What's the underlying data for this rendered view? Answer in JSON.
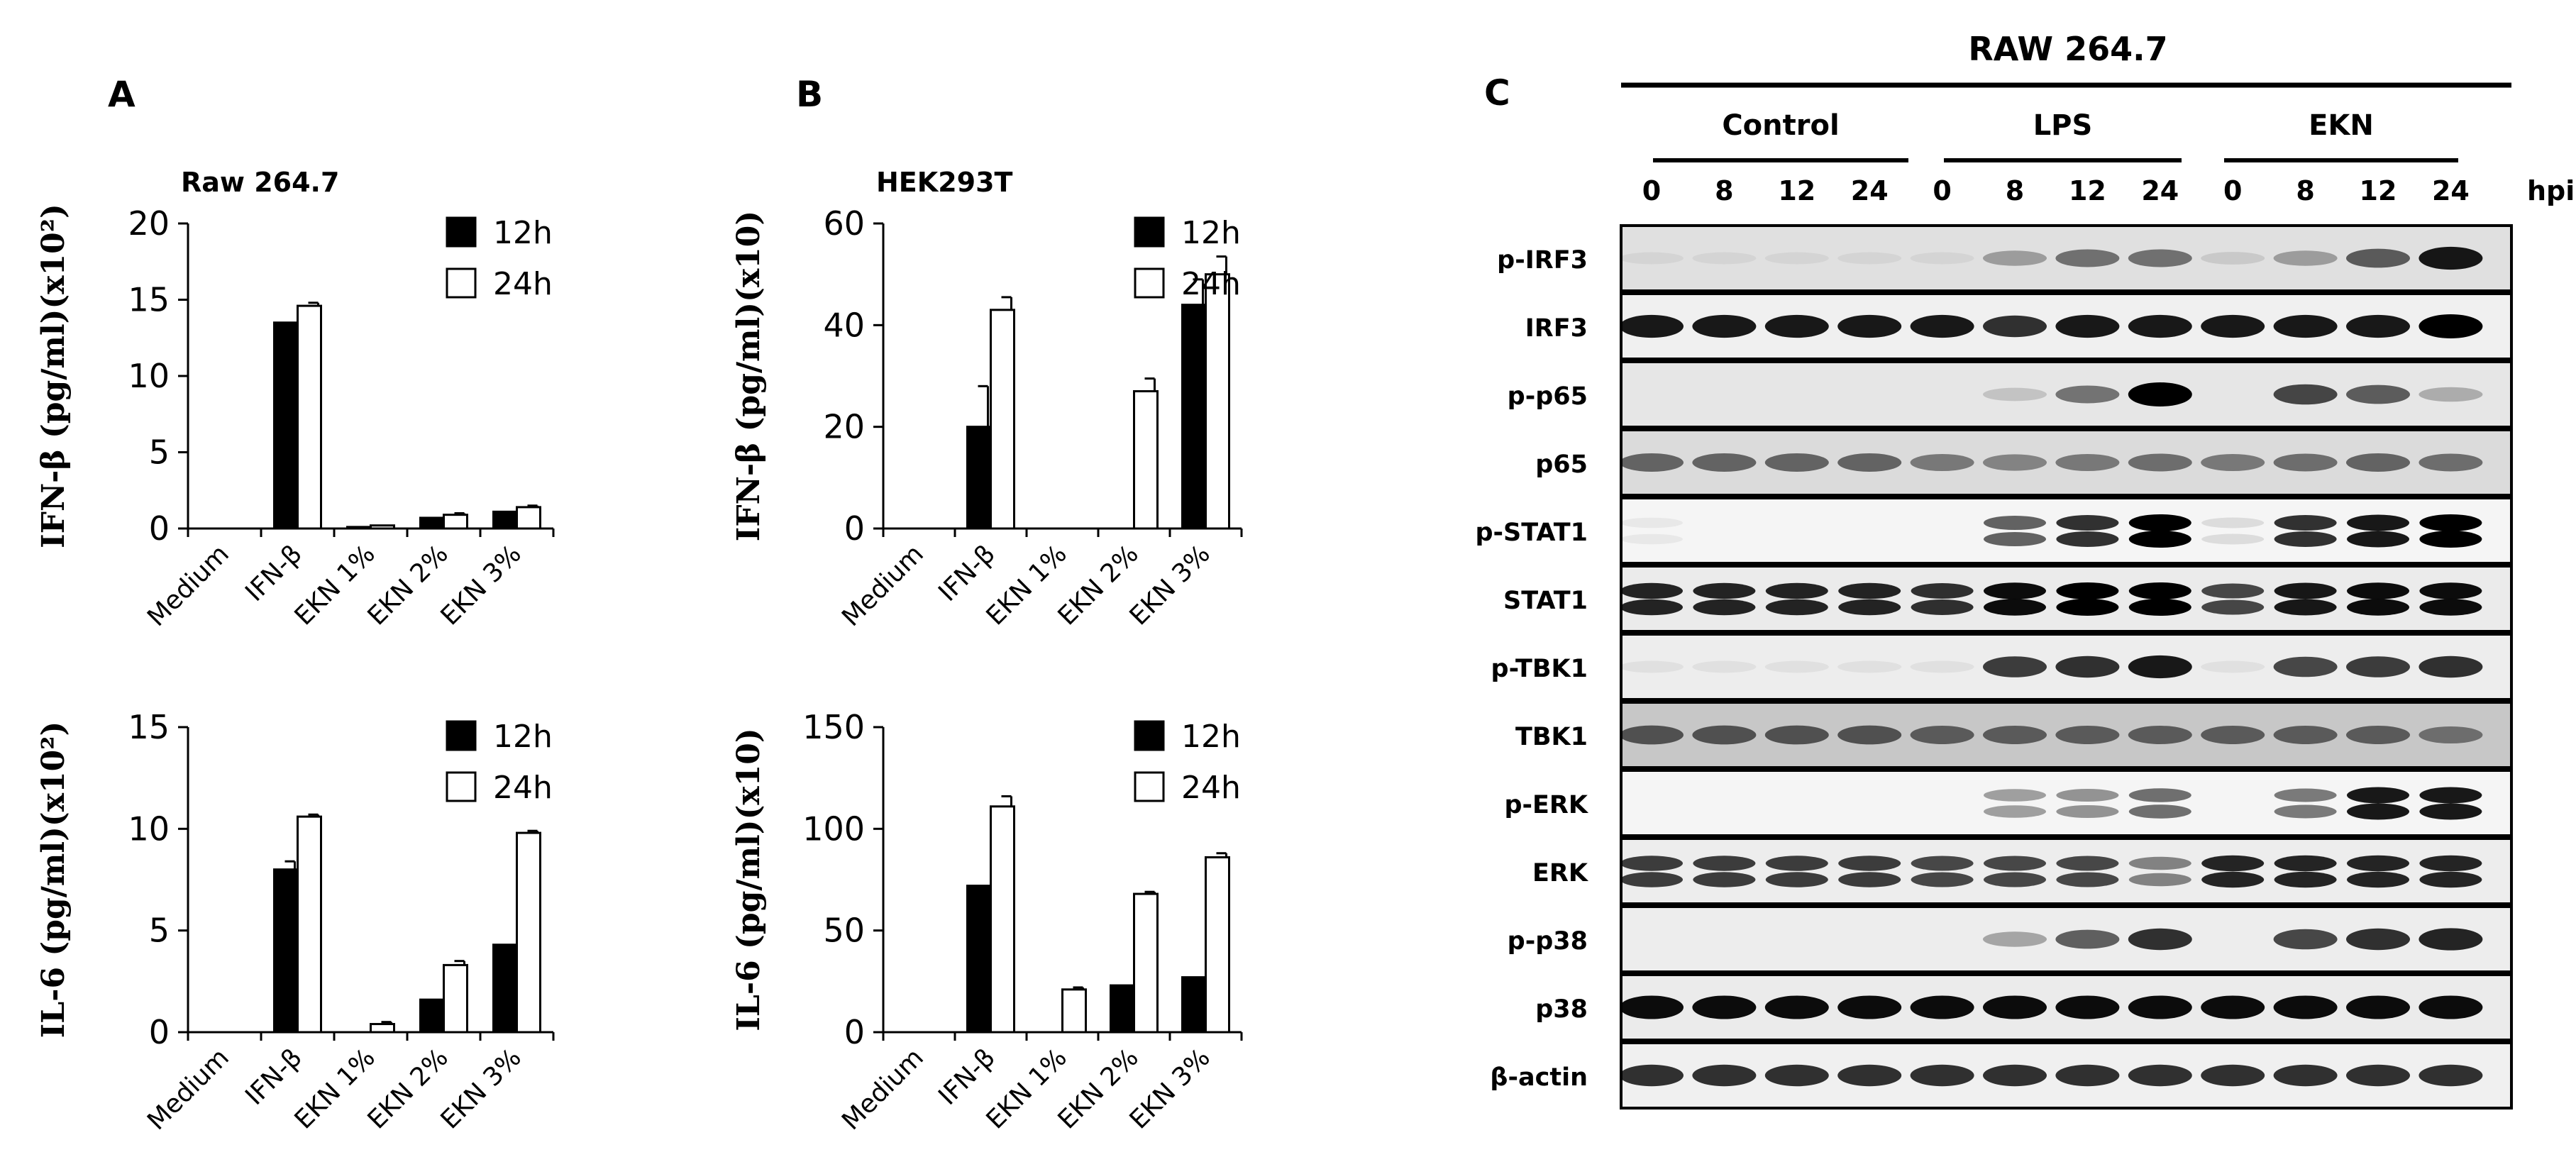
{
  "panel_labels": [
    "A",
    "B",
    "C"
  ],
  "legend": {
    "series": [
      "12h",
      "24h"
    ]
  },
  "chart_data": [
    {
      "type": "bar",
      "panel": "A",
      "subtitle": "Raw 264.7",
      "ylabel": "IFN-β (pg/ml)(x10²)",
      "ylim": [
        0,
        20
      ],
      "yticks": [
        "0",
        "5",
        "10",
        "15",
        "20"
      ],
      "categories": [
        "Medium",
        "IFN-β",
        "EKN 1%",
        "EKN 2%",
        "EKN 3%"
      ],
      "series": [
        {
          "name": "12h",
          "values": [
            0,
            13.5,
            0.1,
            0.7,
            1.1
          ],
          "errors": [
            0,
            0,
            0,
            0,
            0
          ]
        },
        {
          "name": "24h",
          "values": [
            0,
            14.6,
            0.2,
            0.9,
            1.4
          ],
          "errors": [
            0,
            0.2,
            0,
            0.1,
            0.1
          ]
        }
      ]
    },
    {
      "type": "bar",
      "panel": "B",
      "subtitle": "HEK293T",
      "ylabel": "IFN-β (pg/ml)(x10)",
      "ylim": [
        0,
        60
      ],
      "yticks": [
        "0",
        "20",
        "40",
        "60"
      ],
      "categories": [
        "Medium",
        "IFN-β",
        "EKN 1%",
        "EKN 2%",
        "EKN 3%"
      ],
      "series": [
        {
          "name": "12h",
          "values": [
            0,
            20,
            0,
            0,
            44
          ],
          "errors": [
            0,
            8,
            0,
            0,
            5
          ]
        },
        {
          "name": "24h",
          "values": [
            0,
            43,
            0,
            27,
            50
          ],
          "errors": [
            0,
            2.5,
            0,
            2.5,
            3.5
          ]
        }
      ]
    },
    {
      "type": "bar",
      "panel": "A",
      "subtitle": "",
      "ylabel": "IL-6 (pg/ml)(x10²)",
      "ylim": [
        0,
        15
      ],
      "yticks": [
        "0",
        "5",
        "10",
        "15"
      ],
      "categories": [
        "Medium",
        "IFN-β",
        "EKN 1%",
        "EKN 2%",
        "EKN 3%"
      ],
      "series": [
        {
          "name": "12h",
          "values": [
            0,
            8.0,
            0,
            1.6,
            4.3
          ],
          "errors": [
            0,
            0.4,
            0,
            0,
            0
          ]
        },
        {
          "name": "24h",
          "values": [
            0,
            10.6,
            0.4,
            3.3,
            9.8
          ],
          "errors": [
            0,
            0.1,
            0.1,
            0.2,
            0.1
          ]
        }
      ]
    },
    {
      "type": "bar",
      "panel": "B",
      "subtitle": "",
      "ylabel": "IL-6 (pg/ml)(x10)",
      "ylim": [
        0,
        150
      ],
      "yticks": [
        "0",
        "50",
        "100",
        "150"
      ],
      "categories": [
        "Medium",
        "IFN-β",
        "EKN 1%",
        "EKN 2%",
        "EKN 3%"
      ],
      "series": [
        {
          "name": "12h",
          "values": [
            0,
            72,
            0,
            23,
            27
          ],
          "errors": [
            0,
            0,
            0,
            0,
            0
          ]
        },
        {
          "name": "24h",
          "values": [
            0,
            111,
            21,
            68,
            86
          ],
          "errors": [
            0,
            5,
            1,
            1,
            2
          ]
        }
      ]
    }
  ],
  "blot": {
    "title": "RAW 264.7",
    "groups": [
      "Control",
      "LPS",
      "EKN"
    ],
    "timepoints": [
      "0",
      "8",
      "12",
      "24",
      "0",
      "8",
      "12",
      "24",
      "0",
      "8",
      "12",
      "24"
    ],
    "time_unit": "hpi",
    "rows": [
      {
        "label": "p-IRF3",
        "bands": [
          0.05,
          0.05,
          0.05,
          0.05,
          0.05,
          0.3,
          0.5,
          0.5,
          0.1,
          0.3,
          0.6,
          0.9
        ],
        "double": false,
        "bg": 0.88
      },
      {
        "label": "IRF3",
        "bands": [
          0.9,
          0.9,
          0.9,
          0.9,
          0.9,
          0.8,
          0.9,
          0.9,
          0.9,
          0.9,
          0.9,
          1.0
        ],
        "double": false,
        "bg": 0.94
      },
      {
        "label": "p-p65",
        "bands": [
          0,
          0,
          0,
          0,
          0,
          0.15,
          0.5,
          1.0,
          0,
          0.7,
          0.6,
          0.25
        ],
        "double": false,
        "bg": 0.9
      },
      {
        "label": "p65",
        "bands": [
          0.55,
          0.55,
          0.55,
          0.55,
          0.45,
          0.4,
          0.45,
          0.5,
          0.45,
          0.5,
          0.55,
          0.5
        ],
        "double": false,
        "bg": 0.86
      },
      {
        "label": "p-STAT1",
        "bands": [
          0.05,
          0,
          0,
          0,
          0,
          0.6,
          0.8,
          1.0,
          0.1,
          0.8,
          0.9,
          1.0
        ],
        "double": true,
        "bg": 0.96
      },
      {
        "label": "STAT1",
        "bands": [
          0.85,
          0.85,
          0.85,
          0.85,
          0.8,
          0.95,
          1.0,
          1.0,
          0.7,
          0.9,
          0.95,
          0.95
        ],
        "double": true,
        "bg": 0.92
      },
      {
        "label": "p-TBK1",
        "bands": [
          0.05,
          0.05,
          0.05,
          0.05,
          0.05,
          0.75,
          0.8,
          0.9,
          0.05,
          0.7,
          0.75,
          0.8
        ],
        "double": false,
        "bg": 0.93
      },
      {
        "label": "TBK1",
        "bands": [
          0.6,
          0.6,
          0.6,
          0.6,
          0.55,
          0.55,
          0.55,
          0.55,
          0.55,
          0.55,
          0.55,
          0.45
        ],
        "double": false,
        "bg": 0.78
      },
      {
        "label": "p-ERK",
        "bands": [
          0,
          0,
          0,
          0,
          0,
          0.35,
          0.4,
          0.55,
          0,
          0.5,
          0.9,
          0.9
        ],
        "double": true,
        "bg": 0.96
      },
      {
        "label": "ERK",
        "bands": [
          0.75,
          0.75,
          0.75,
          0.75,
          0.7,
          0.7,
          0.7,
          0.45,
          0.85,
          0.85,
          0.85,
          0.85
        ],
        "double": true,
        "bg": 0.93
      },
      {
        "label": "p-p38",
        "bands": [
          0,
          0,
          0,
          0,
          0,
          0.3,
          0.6,
          0.8,
          0,
          0.7,
          0.8,
          0.85
        ],
        "double": false,
        "bg": 0.93
      },
      {
        "label": "p38",
        "bands": [
          0.95,
          0.95,
          0.95,
          0.95,
          0.95,
          0.95,
          0.95,
          0.95,
          0.95,
          0.95,
          0.95,
          0.95
        ],
        "double": false,
        "bg": 0.92
      },
      {
        "label": "β-actin",
        "bands": [
          0.8,
          0.8,
          0.8,
          0.8,
          0.8,
          0.8,
          0.8,
          0.8,
          0.8,
          0.8,
          0.8,
          0.8
        ],
        "double": false,
        "bg": 0.94
      }
    ]
  },
  "colors": {
    "bar_12h": "#000000",
    "bar_24h": "#ffffff",
    "axis": "#000000"
  }
}
